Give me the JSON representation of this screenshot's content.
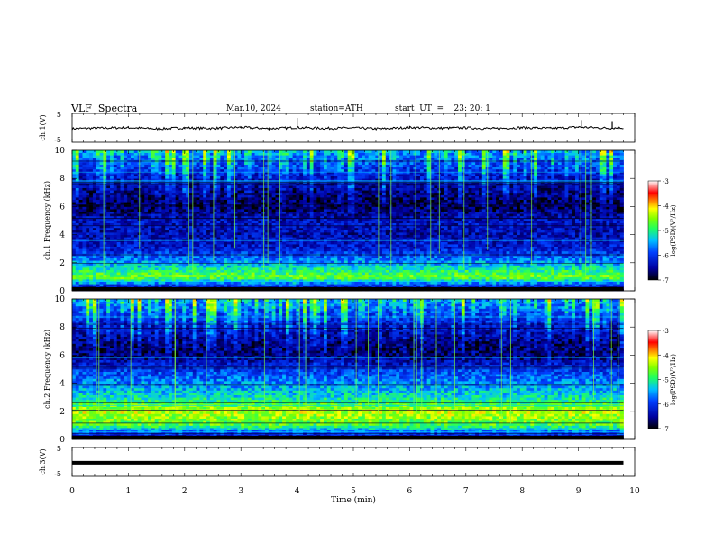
{
  "header": {
    "title": "VLF  Spectra",
    "date": "Mar.10, 2024",
    "station": "station=ATH",
    "start": "start  UT  =    23: 20: 1"
  },
  "chart_data": [
    {
      "type": "line",
      "name": "ch1_waveform",
      "ylabel": "ch.1(V)",
      "ylim": [
        -5,
        5
      ],
      "yticks": [
        "5",
        "-5"
      ],
      "xlim": [
        0,
        10
      ],
      "x": [
        0.0,
        0.5,
        1.0,
        1.5,
        2.0,
        2.5,
        3.0,
        3.5,
        4.0,
        4.5,
        5.0,
        5.5,
        6.0,
        6.5,
        7.0,
        7.5,
        8.0,
        8.5,
        9.0,
        9.5,
        9.8
      ],
      "y": [
        -0.3,
        -0.1,
        0.1,
        -0.4,
        0.0,
        -0.2,
        0.2,
        -0.3,
        0.1,
        -0.2,
        0.0,
        -0.4,
        0.2,
        -0.1,
        0.0,
        -0.3,
        0.1,
        -0.2,
        0.3,
        -0.1,
        0.0
      ],
      "spikes": [
        {
          "x": 4.0,
          "y": 3.8
        },
        {
          "x": 9.05,
          "y": 3.0
        },
        {
          "x": 9.6,
          "y": 2.6
        }
      ]
    },
    {
      "type": "heatmap",
      "name": "ch1_spectrogram",
      "ylabel": "ch.1 Frequency  (kHz)",
      "ylim": [
        0,
        10
      ],
      "yticks": [
        "0",
        "2",
        "4",
        "6",
        "8",
        "10"
      ],
      "xlim": [
        0,
        9.8
      ],
      "colorbar": {
        "label": "log(PSD)(V²/Hz)",
        "range": [
          -7,
          -3
        ],
        "ticks": [
          "-3",
          "-4",
          "-5",
          "-6",
          "-7"
        ]
      },
      "band_levels_by_khz": [
        -6.9,
        -4.6,
        -5.5,
        -6.2,
        -6.4,
        -6.3,
        -6.8,
        -6.6,
        -6.3,
        -5.9,
        -5.5
      ]
    },
    {
      "type": "heatmap",
      "name": "ch2_spectrogram",
      "ylabel": "ch.2 Frequency  (kHz)",
      "ylim": [
        0,
        10
      ],
      "yticks": [
        "0",
        "2",
        "4",
        "6",
        "8",
        "10"
      ],
      "xlim": [
        0,
        9.8
      ],
      "colorbar": {
        "label": "log(PSD)(V²/Hz)",
        "range": [
          -7,
          -3
        ],
        "ticks": [
          "-3",
          "-4",
          "-5",
          "-6",
          "-7"
        ]
      },
      "band_levels_by_khz": [
        -6.9,
        -4.8,
        -4.3,
        -5.2,
        -5.6,
        -6.0,
        -6.7,
        -6.6,
        -6.3,
        -5.9,
        -5.5
      ]
    },
    {
      "type": "line",
      "name": "ch3_waveform",
      "ylabel": "ch.3(V)",
      "ylim": [
        -5,
        5
      ],
      "yticks": [
        "5",
        "-5"
      ],
      "xlim": [
        0,
        10
      ],
      "x": [
        0.0,
        9.8
      ],
      "y": [
        -1.0,
        -1.0
      ],
      "xlabel": "Time  (min)",
      "xticks": [
        "0",
        "1",
        "2",
        "3",
        "4",
        "5",
        "6",
        "7",
        "8",
        "9",
        "10"
      ]
    }
  ]
}
